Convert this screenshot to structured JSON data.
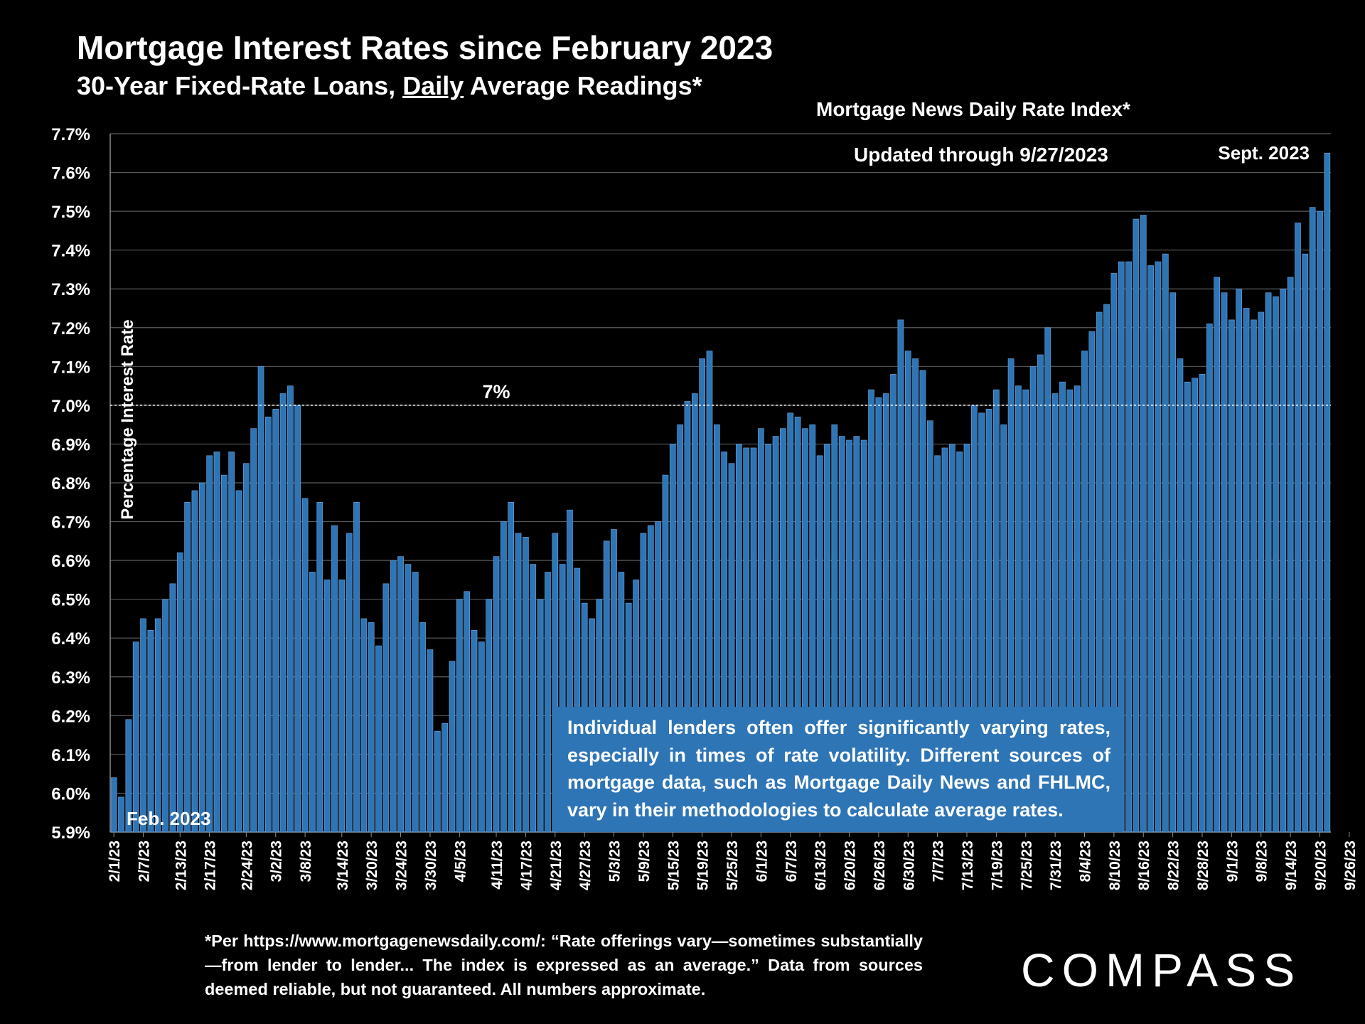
{
  "header": {
    "title": "Mortgage Interest Rates since February 2023",
    "subtitle_pre": "30-Year Fixed-Rate Loans, ",
    "subtitle_emph": "Daily",
    "subtitle_post": " Average Readings*"
  },
  "source_label": "Mortgage News Daily Rate Index*",
  "updated_label": "Updated through 9/27/2023",
  "note_box": "Individual lenders often offer significantly varying rates, especially in times of rate volatility. Different sources of mortgage data, such as Mortgage Daily News and FHLMC, vary in their methodologies to calculate average rates.",
  "footnote": "*Per https://www.mortgagenewsdaily.com/: “Rate offerings vary—sometimes substantially—from lender to lender... The index is expressed as an average.” Data from sources deemed reliable, but not guaranteed. All numbers approximate.",
  "logo": "COMPASS",
  "colors": {
    "bar": "#2e75b6",
    "bar_edge": "#6fa3d9",
    "background": "#000000",
    "grid": "#595959"
  },
  "chart_data": {
    "type": "bar",
    "title": "Mortgage Interest Rates since February 2023",
    "ylabel": "Percentage Interest  Rate",
    "xlabel": "",
    "ylim": [
      5.9,
      7.7
    ],
    "yticks": [
      5.9,
      6.0,
      6.1,
      6.2,
      6.3,
      6.4,
      6.5,
      6.6,
      6.7,
      6.8,
      6.9,
      7.0,
      7.1,
      7.2,
      7.3,
      7.4,
      7.5,
      7.6,
      7.7
    ],
    "ytick_labels": [
      "5.9%",
      "6.0%",
      "6.1%",
      "6.2%",
      "6.3%",
      "6.4%",
      "6.5%",
      "6.6%",
      "6.7%",
      "6.8%",
      "6.9%",
      "7.0%",
      "7.1%",
      "7.2%",
      "7.3%",
      "7.4%",
      "7.5%",
      "7.6%",
      "7.7%"
    ],
    "grid": true,
    "reference_line": {
      "value": 7.0,
      "label": "7%"
    },
    "annotations": {
      "start": "Feb. 2023",
      "end": "Sept. 2023"
    },
    "x_ticks": [
      {
        "index": 0,
        "label": "2/1/23"
      },
      {
        "index": 4,
        "label": "2/7/23"
      },
      {
        "index": 9,
        "label": "2/13/23"
      },
      {
        "index": 13,
        "label": "2/17/23"
      },
      {
        "index": 18,
        "label": "2/24/23"
      },
      {
        "index": 22,
        "label": "3/2/23"
      },
      {
        "index": 26,
        "label": "3/8/23"
      },
      {
        "index": 31,
        "label": "3/14/23"
      },
      {
        "index": 35,
        "label": "3/20/23"
      },
      {
        "index": 39,
        "label": "3/24/23"
      },
      {
        "index": 43,
        "label": "3/30/23"
      },
      {
        "index": 47,
        "label": "4/5/23"
      },
      {
        "index": 52,
        "label": "4/11/23"
      },
      {
        "index": 56,
        "label": "4/17/23"
      },
      {
        "index": 60,
        "label": "4/21/23"
      },
      {
        "index": 64,
        "label": "4/27/23"
      },
      {
        "index": 68,
        "label": "5/3/23"
      },
      {
        "index": 72,
        "label": "5/9/23"
      },
      {
        "index": 76,
        "label": "5/15/23"
      },
      {
        "index": 80,
        "label": "5/19/23"
      },
      {
        "index": 84,
        "label": "5/25/23"
      },
      {
        "index": 88,
        "label": "6/1/23"
      },
      {
        "index": 92,
        "label": "6/7/23"
      },
      {
        "index": 96,
        "label": "6/13/23"
      },
      {
        "index": 100,
        "label": "6/20/23"
      },
      {
        "index": 104,
        "label": "6/26/23"
      },
      {
        "index": 108,
        "label": "6/30/23"
      },
      {
        "index": 112,
        "label": "7/7/23"
      },
      {
        "index": 116,
        "label": "7/13/23"
      },
      {
        "index": 120,
        "label": "7/19/23"
      },
      {
        "index": 124,
        "label": "7/25/23"
      },
      {
        "index": 128,
        "label": "7/31/23"
      },
      {
        "index": 132,
        "label": "8/4/23"
      },
      {
        "index": 136,
        "label": "8/10/23"
      },
      {
        "index": 140,
        "label": "8/16/23"
      },
      {
        "index": 144,
        "label": "8/22/23"
      },
      {
        "index": 148,
        "label": "8/28/23"
      },
      {
        "index": 152,
        "label": "9/1/23"
      },
      {
        "index": 156,
        "label": "9/8/23"
      },
      {
        "index": 160,
        "label": "9/14/23"
      },
      {
        "index": 164,
        "label": "9/20/23"
      },
      {
        "index": 168,
        "label": "9/26/23"
      }
    ],
    "values": [
      6.04,
      5.99,
      6.19,
      6.39,
      6.45,
      6.42,
      6.45,
      6.5,
      6.54,
      6.62,
      6.75,
      6.78,
      6.8,
      6.87,
      6.88,
      6.82,
      6.88,
      6.78,
      6.85,
      6.94,
      7.1,
      6.97,
      6.99,
      7.03,
      7.05,
      7.0,
      6.76,
      6.57,
      6.75,
      6.55,
      6.69,
      6.55,
      6.67,
      6.75,
      6.45,
      6.44,
      6.38,
      6.54,
      6.6,
      6.61,
      6.59,
      6.57,
      6.44,
      6.37,
      6.16,
      6.18,
      6.34,
      6.5,
      6.52,
      6.42,
      6.39,
      6.5,
      6.61,
      6.7,
      6.75,
      6.67,
      6.66,
      6.59,
      6.5,
      6.57,
      6.67,
      6.59,
      6.73,
      6.58,
      6.49,
      6.45,
      6.5,
      6.65,
      6.68,
      6.57,
      6.49,
      6.55,
      6.67,
      6.69,
      6.7,
      6.82,
      6.9,
      6.95,
      7.01,
      7.03,
      7.12,
      7.14,
      6.95,
      6.88,
      6.85,
      6.9,
      6.89,
      6.89,
      6.94,
      6.9,
      6.92,
      6.94,
      6.98,
      6.97,
      6.94,
      6.95,
      6.87,
      6.9,
      6.95,
      6.92,
      6.91,
      6.92,
      6.91,
      7.04,
      7.02,
      7.03,
      7.08,
      7.22,
      7.14,
      7.12,
      7.09,
      6.96,
      6.87,
      6.89,
      6.9,
      6.88,
      6.9,
      7.0,
      6.98,
      6.99,
      7.04,
      6.95,
      7.12,
      7.05,
      7.04,
      7.1,
      7.13,
      7.2,
      7.03,
      7.06,
      7.04,
      7.05,
      7.14,
      7.19,
      7.24,
      7.26,
      7.34,
      7.37,
      7.37,
      7.48,
      7.49,
      7.36,
      7.37,
      7.39,
      7.29,
      7.12,
      7.06,
      7.07,
      7.08,
      7.21,
      7.33,
      7.29,
      7.22,
      7.3,
      7.25,
      7.22,
      7.24,
      7.29,
      7.28,
      7.3,
      7.33,
      7.47,
      7.39,
      7.51,
      7.5,
      7.65
    ]
  }
}
